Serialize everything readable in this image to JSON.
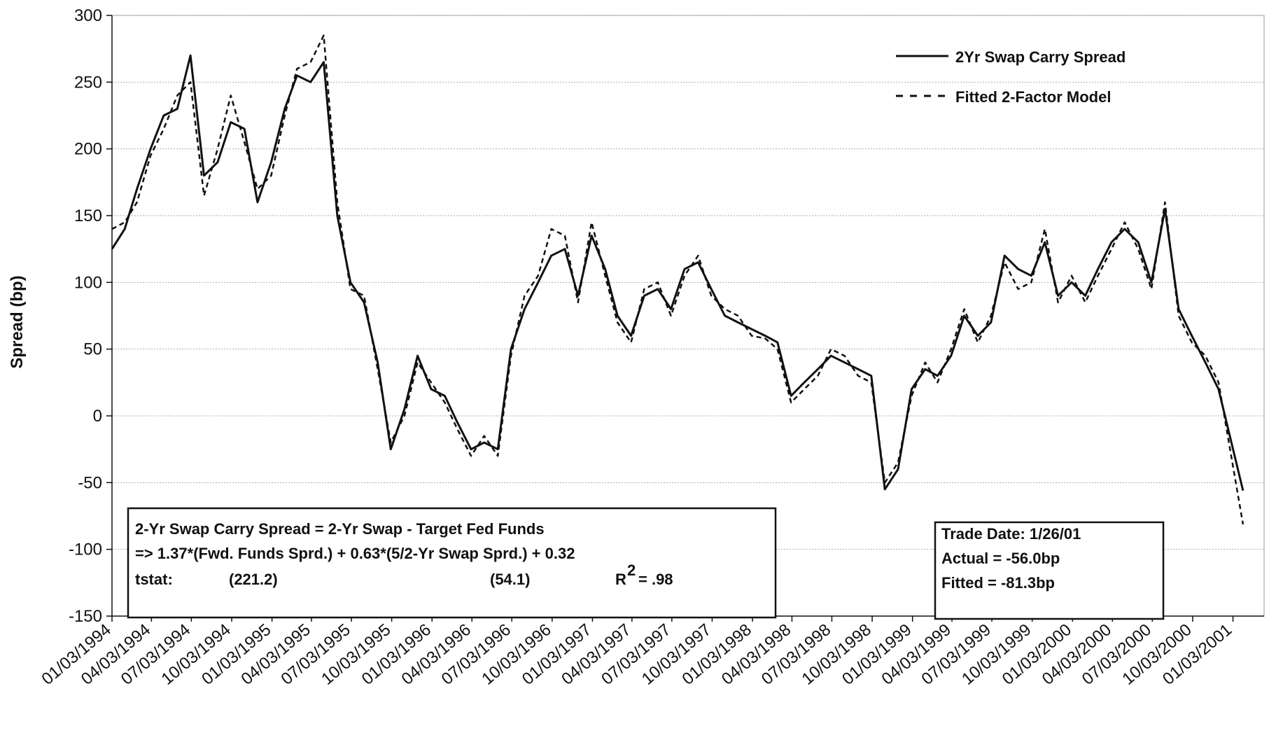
{
  "chart_data": {
    "type": "line",
    "y_label": "Spread (bp)",
    "x": [
      "01/03/1994",
      "02/01/1994",
      "03/01/1994",
      "04/01/1994",
      "05/01/1994",
      "06/01/1994",
      "07/01/1994",
      "08/01/1994",
      "09/01/1994",
      "10/01/1994",
      "11/01/1994",
      "12/01/1994",
      "01/01/1995",
      "02/01/1995",
      "03/01/1995",
      "04/01/1995",
      "05/01/1995",
      "06/01/1995",
      "07/01/1995",
      "08/01/1995",
      "09/01/1995",
      "10/01/1995",
      "11/01/1995",
      "12/01/1995",
      "01/01/1996",
      "02/01/1996",
      "03/01/1996",
      "04/01/1996",
      "05/01/1996",
      "06/01/1996",
      "07/01/1996",
      "08/01/1996",
      "09/01/1996",
      "10/01/1996",
      "11/01/1996",
      "12/01/1996",
      "01/01/1997",
      "02/01/1997",
      "03/01/1997",
      "04/01/1997",
      "05/01/1997",
      "06/01/1997",
      "07/01/1997",
      "08/01/1997",
      "09/01/1997",
      "10/01/1997",
      "11/01/1997",
      "12/01/1997",
      "01/01/1998",
      "02/01/1998",
      "03/01/1998",
      "04/01/1998",
      "05/01/1998",
      "06/01/1998",
      "07/01/1998",
      "08/01/1998",
      "09/01/1998",
      "10/01/1998",
      "11/01/1998",
      "12/01/1998",
      "01/01/1999",
      "02/01/1999",
      "03/01/1999",
      "04/01/1999",
      "05/01/1999",
      "06/01/1999",
      "07/01/1999",
      "08/01/1999",
      "09/01/1999",
      "10/01/1999",
      "11/01/1999",
      "12/01/1999",
      "01/01/2000",
      "02/01/2000",
      "03/01/2000",
      "04/01/2000",
      "05/01/2000",
      "06/01/2000",
      "07/01/2000",
      "08/01/2000",
      "09/01/2000",
      "10/01/2000",
      "11/01/2000",
      "12/01/2000",
      "01/26/2001"
    ],
    "series": [
      {
        "name": "2Yr Swap Carry Spread",
        "color": "#111111",
        "style": "solid",
        "values": [
          125,
          140,
          170,
          200,
          225,
          230,
          270,
          180,
          190,
          220,
          215,
          160,
          190,
          230,
          255,
          250,
          265,
          150,
          100,
          85,
          40,
          -25,
          5,
          45,
          20,
          15,
          -5,
          -25,
          -20,
          -25,
          50,
          80,
          100,
          120,
          125,
          90,
          135,
          110,
          75,
          60,
          90,
          95,
          80,
          110,
          115,
          95,
          75,
          70,
          65,
          60,
          55,
          15,
          25,
          35,
          45,
          40,
          35,
          30,
          -55,
          -40,
          20,
          35,
          30,
          45,
          75,
          60,
          70,
          120,
          110,
          105,
          130,
          90,
          100,
          90,
          110,
          130,
          140,
          130,
          100,
          155,
          80,
          60,
          40,
          20,
          -56
        ]
      },
      {
        "name": "Fitted 2-Factor Model",
        "color": "#111111",
        "style": "dashed",
        "values": [
          140,
          145,
          160,
          195,
          215,
          240,
          250,
          165,
          200,
          240,
          205,
          170,
          180,
          225,
          260,
          265,
          285,
          160,
          95,
          90,
          35,
          -20,
          0,
          40,
          25,
          10,
          -10,
          -30,
          -15,
          -30,
          45,
          90,
          105,
          140,
          135,
          85,
          145,
          105,
          70,
          55,
          95,
          100,
          75,
          105,
          120,
          90,
          80,
          75,
          60,
          58,
          50,
          10,
          20,
          30,
          50,
          45,
          30,
          25,
          -50,
          -35,
          15,
          40,
          25,
          50,
          80,
          55,
          75,
          115,
          95,
          100,
          140,
          85,
          105,
          85,
          105,
          125,
          145,
          125,
          95,
          160,
          75,
          55,
          45,
          25,
          -81.3
        ]
      }
    ],
    "xlim": [
      "01/03/1994",
      "03/15/2001"
    ],
    "xticks": [
      "01/03/1994",
      "04/03/1994",
      "07/03/1994",
      "10/03/1994",
      "01/03/1995",
      "04/03/1995",
      "07/03/1995",
      "10/03/1995",
      "01/03/1996",
      "04/03/1996",
      "07/03/1996",
      "10/03/1996",
      "01/03/1997",
      "04/03/1997",
      "07/03/1997",
      "10/03/1997",
      "01/03/1998",
      "04/03/1998",
      "07/03/1998",
      "10/03/1998",
      "01/03/1999",
      "04/03/1999",
      "07/03/1999",
      "10/03/1999",
      "01/03/2000",
      "04/03/2000",
      "07/03/2000",
      "10/03/2000",
      "01/03/2001"
    ],
    "ylim": [
      -150,
      300
    ],
    "yticks": [
      -150,
      -100,
      -50,
      0,
      50,
      100,
      150,
      200,
      250,
      300
    ],
    "grid": true,
    "legend": "top-right",
    "equation_box": {
      "line1": "2-Yr Swap Carry Spread =  2-Yr Swap - Target Fed Funds",
      "line2": "=>  1.37*(Fwd. Funds Sprd.) + 0.63*(5/2-Yr Swap Sprd.) + 0.32",
      "tstat_label": "tstat:",
      "tstat_1": "(221.2)",
      "tstat_2": "(54.1)",
      "r2_base": "R",
      "r2_exp": "2",
      "r2_value": "= .98"
    },
    "trade_box": [
      "Trade Date: 1/26/01",
      "Actual = -56.0bp",
      "Fitted = -81.3bp"
    ]
  }
}
